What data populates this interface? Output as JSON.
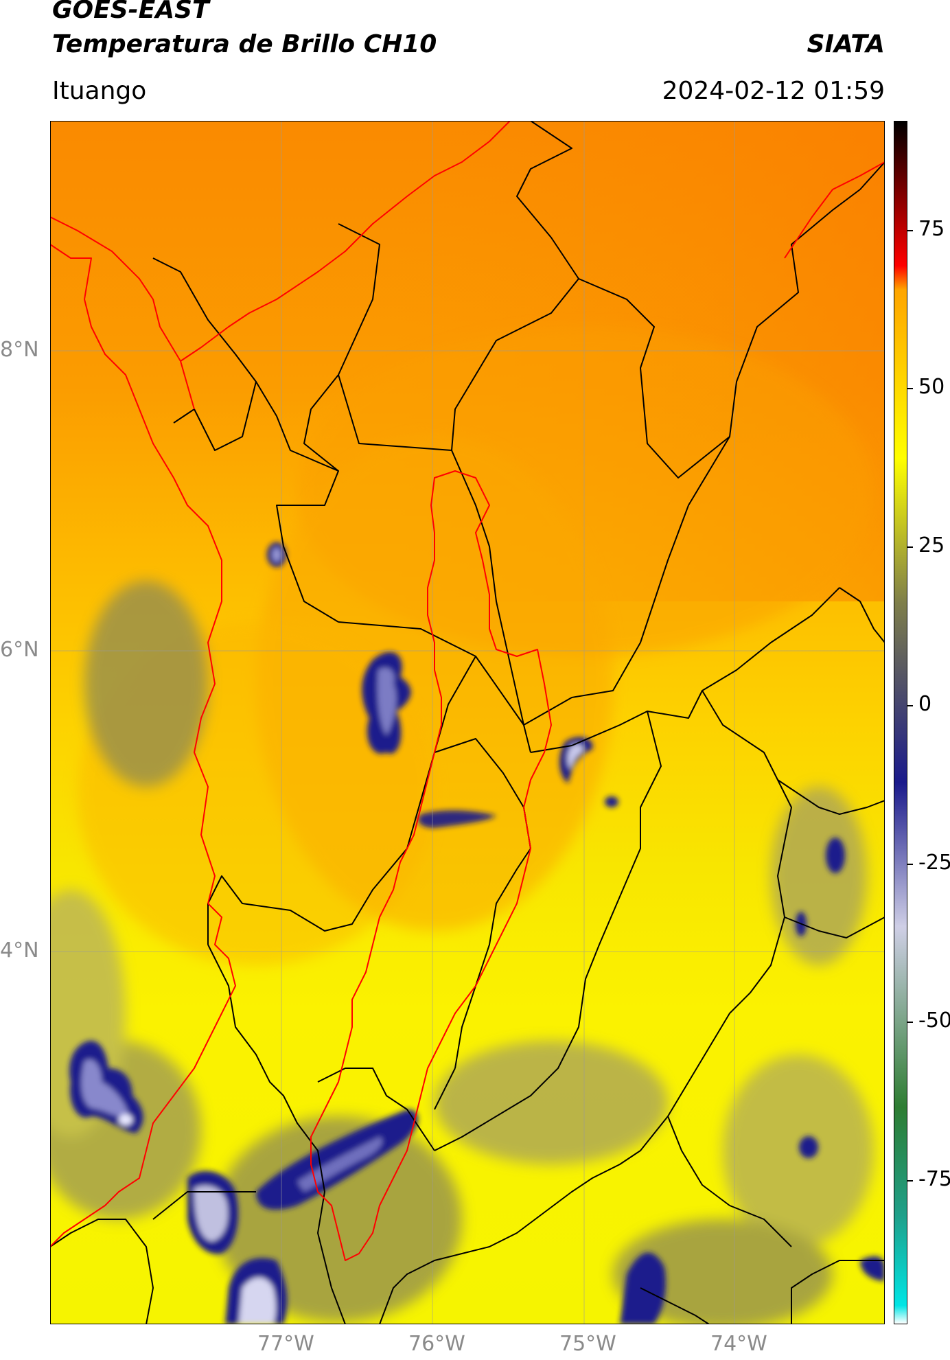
{
  "header": {
    "title_line1": "GOES-EAST",
    "title_line2": "Temperatura de Brillo CH10",
    "organization": "SIATA",
    "location": "Ituango",
    "timestamp": "2024-02-12 01:59"
  },
  "map": {
    "lat_labels": [
      "8°N",
      "6°N",
      "4°N"
    ],
    "lon_labels": [
      "77°W",
      "76°W",
      "75°W",
      "74°W"
    ],
    "boundary_colors": {
      "department": "#000000",
      "basin": "#ff0000"
    }
  },
  "colorbar": {
    "ticks": [
      "75",
      "50",
      "25",
      "0",
      "-25",
      "-50",
      "-75"
    ],
    "colors": [
      "#ffffff",
      "#00e5e5",
      "#1fa08a",
      "#2e7d32",
      "#cfcfe6",
      "#1a1a8c",
      "#7f7f4a",
      "#ffff00",
      "#ffa500",
      "#ff0000",
      "#000000"
    ]
  }
}
